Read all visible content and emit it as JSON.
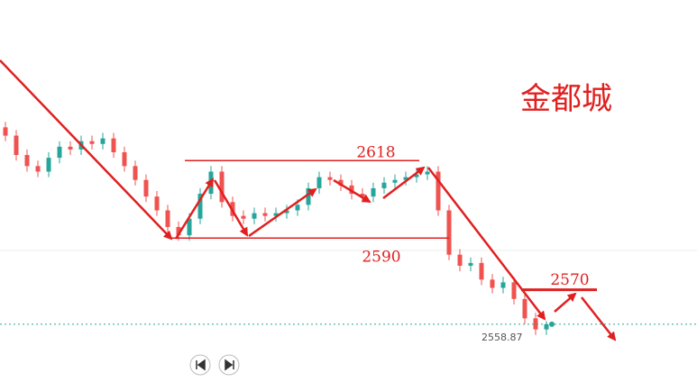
{
  "chart_data": {
    "type": "candlestick",
    "title": "金都城",
    "open": [
      2630,
      2627,
      2620,
      2616,
      2614,
      2619,
      2623,
      2622,
      2625,
      2624,
      2626,
      2621,
      2616,
      2611,
      2605,
      2600,
      2594,
      2591,
      2597,
      2606,
      2614,
      2603,
      2598,
      2597,
      2599,
      2598,
      2599,
      2600,
      2602,
      2608,
      2612,
      2611,
      2609,
      2606,
      2605,
      2608,
      2610,
      2611,
      2612,
      2613,
      2614,
      2600,
      2584,
      2580,
      2581,
      2575,
      2572,
      2574,
      2568,
      2561,
      2557
    ],
    "high": [
      2632,
      2629,
      2622,
      2618,
      2621,
      2625,
      2625,
      2627,
      2627,
      2628,
      2628,
      2623,
      2618,
      2613,
      2607,
      2602,
      2596,
      2599,
      2608,
      2616,
      2616,
      2605,
      2600,
      2601,
      2601,
      2601,
      2602,
      2604,
      2610,
      2614,
      2614,
      2613,
      2611,
      2608,
      2610,
      2612,
      2613,
      2614,
      2615,
      2616,
      2616,
      2602,
      2586,
      2583,
      2583,
      2577,
      2576,
      2576,
      2570,
      2563,
      2560
    ],
    "low": [
      2625,
      2618,
      2614,
      2612,
      2612,
      2617,
      2620,
      2620,
      2622,
      2622,
      2619,
      2614,
      2609,
      2603,
      2598,
      2592,
      2589,
      2589,
      2595,
      2604,
      2601,
      2596,
      2595,
      2595,
      2596,
      2596,
      2597,
      2598,
      2600,
      2606,
      2609,
      2607,
      2604,
      2603,
      2603,
      2606,
      2608,
      2609,
      2610,
      2611,
      2598,
      2582,
      2578,
      2578,
      2573,
      2570,
      2570,
      2566,
      2559,
      2555,
      2555
    ],
    "close": [
      2627,
      2620,
      2616,
      2614,
      2619,
      2623,
      2622,
      2625,
      2624,
      2626,
      2621,
      2616,
      2611,
      2605,
      2600,
      2594,
      2591,
      2597,
      2606,
      2614,
      2603,
      2598,
      2597,
      2599,
      2598,
      2599,
      2600,
      2602,
      2608,
      2612,
      2611,
      2609,
      2606,
      2605,
      2608,
      2610,
      2611,
      2612,
      2613,
      2614,
      2600,
      2584,
      2580,
      2581,
      2575,
      2572,
      2574,
      2568,
      2561,
      2557,
      2558.87
    ],
    "up_color": "#26a69a",
    "down_color": "#ef5350",
    "levels": [
      2618,
      2590,
      2570
    ],
    "level_color": "#e02020",
    "last": 2558.87,
    "ylim": [
      2538,
      2676
    ]
  }
}
